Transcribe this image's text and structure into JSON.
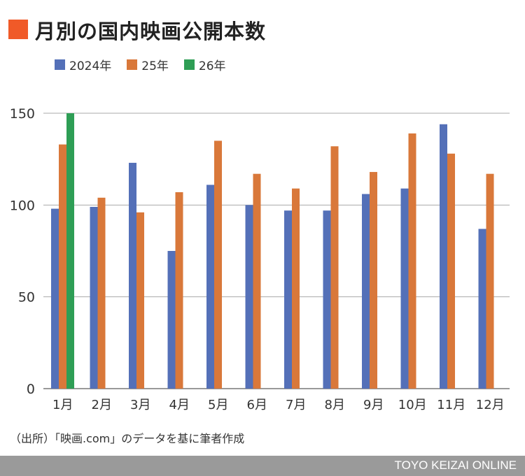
{
  "title": "月別の国内映画公開本数",
  "source": "（出所）「映画.com」のデータを基に筆者作成",
  "footer": "TOYO KEIZAI ONLINE",
  "chart_data": {
    "type": "bar",
    "title": "月別の国内映画公開本数",
    "xlabel": "",
    "ylabel": "",
    "ylim": [
      0,
      150
    ],
    "yticks": [
      "0",
      "50",
      "100",
      "150"
    ],
    "grid": true,
    "legend_position": "top-left",
    "categories": [
      "1月",
      "2月",
      "3月",
      "4月",
      "5月",
      "6月",
      "7月",
      "8月",
      "9月",
      "10月",
      "11月",
      "12月"
    ],
    "series": [
      {
        "name": "2024年",
        "color": "#5470b8",
        "values": [
          98,
          99,
          123,
          75,
          111,
          100,
          97,
          97,
          106,
          109,
          144,
          87
        ]
      },
      {
        "name": "25年",
        "color": "#d9783a",
        "values": [
          133,
          104,
          96,
          107,
          135,
          117,
          109,
          132,
          118,
          139,
          128,
          117
        ]
      },
      {
        "name": "26年",
        "color": "#2e9e55",
        "values": [
          150,
          null,
          null,
          null,
          null,
          null,
          null,
          null,
          null,
          null,
          null,
          null
        ]
      }
    ]
  }
}
